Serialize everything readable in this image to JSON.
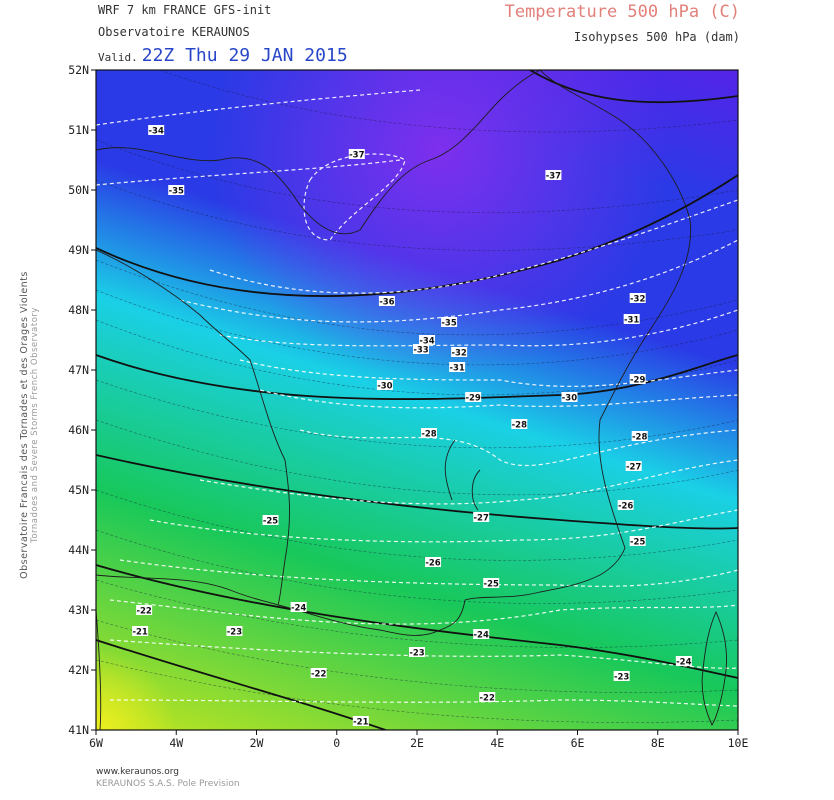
{
  "header": {
    "model": "WRF 7 km FRANCE  GFS-init",
    "organization": "Observatoire KERAUNOS",
    "valid_label": "Valid.",
    "valid_time": "22Z Thu 29 JAN 2015",
    "temperature_title": "Temperature 500 hPa (C)",
    "isohypses_title": "Isohypses 500 hPa (dam)"
  },
  "side_text": {
    "french": "Observatoire Francais des Tornades et des Orages Violents",
    "english": "Tornadoes and Severe Storms French Observatory"
  },
  "footer": {
    "website": "www.keraunos.org",
    "company": "KERAUNOS S.A.S. Pole Prevision"
  },
  "map": {
    "lon_range": [
      -6,
      10
    ],
    "lat_range": [
      41,
      52
    ],
    "lon_ticks": [
      {
        "value": -6,
        "label": "6W"
      },
      {
        "value": -4,
        "label": "4W"
      },
      {
        "value": -2,
        "label": "2W"
      },
      {
        "value": 0,
        "label": "0"
      },
      {
        "value": 2,
        "label": "2E"
      },
      {
        "value": 4,
        "label": "4E"
      },
      {
        "value": 6,
        "label": "6E"
      },
      {
        "value": 8,
        "label": "8E"
      },
      {
        "value": 10,
        "label": "10E"
      }
    ],
    "lat_ticks": [
      {
        "value": 52,
        "label": "52N"
      },
      {
        "value": 51,
        "label": "51N"
      },
      {
        "value": 50,
        "label": "50N"
      },
      {
        "value": 49,
        "label": "49N"
      },
      {
        "value": 48,
        "label": "48N"
      },
      {
        "value": 47,
        "label": "47N"
      },
      {
        "value": 46,
        "label": "46N"
      },
      {
        "value": 45,
        "label": "45N"
      },
      {
        "value": 44,
        "label": "44N"
      },
      {
        "value": 43,
        "label": "43N"
      },
      {
        "value": 42,
        "label": "42N"
      },
      {
        "value": 41,
        "label": "41N"
      }
    ],
    "colors": {
      "cold": "#6a18ea",
      "blue": "#2a3ae6",
      "cyan": "#1ad0e6",
      "green": "#18c85a",
      "warm": "#d8e818"
    },
    "isotherm_labels": [
      {
        "text": "-34",
        "lon": -4.5,
        "lat": 51.0
      },
      {
        "text": "-35",
        "lon": -4.0,
        "lat": 50.0
      },
      {
        "text": "-37",
        "lon": 0.5,
        "lat": 50.6
      },
      {
        "text": "-37",
        "lon": 5.4,
        "lat": 50.25
      },
      {
        "text": "-36",
        "lon": 1.25,
        "lat": 48.15
      },
      {
        "text": "-35",
        "lon": 2.8,
        "lat": 47.8
      },
      {
        "text": "-34",
        "lon": 2.25,
        "lat": 47.5
      },
      {
        "text": "-33",
        "lon": 2.1,
        "lat": 47.35
      },
      {
        "text": "-32",
        "lon": 3.05,
        "lat": 47.3
      },
      {
        "text": "-31",
        "lon": 3.0,
        "lat": 47.05
      },
      {
        "text": "-30",
        "lon": 1.2,
        "lat": 46.75
      },
      {
        "text": "-29",
        "lon": 3.4,
        "lat": 46.55
      },
      {
        "text": "-30",
        "lon": 5.8,
        "lat": 46.55
      },
      {
        "text": "-32",
        "lon": 7.5,
        "lat": 48.2
      },
      {
        "text": "-31",
        "lon": 7.35,
        "lat": 47.85
      },
      {
        "text": "-29",
        "lon": 7.5,
        "lat": 46.85
      },
      {
        "text": "-28",
        "lon": 2.3,
        "lat": 45.95
      },
      {
        "text": "-28",
        "lon": 4.55,
        "lat": 46.1
      },
      {
        "text": "-28",
        "lon": 7.55,
        "lat": 45.9
      },
      {
        "text": "-27",
        "lon": 7.4,
        "lat": 45.4
      },
      {
        "text": "-27",
        "lon": 3.6,
        "lat": 44.55
      },
      {
        "text": "-26",
        "lon": 7.2,
        "lat": 44.75
      },
      {
        "text": "-25",
        "lon": -1.65,
        "lat": 44.5
      },
      {
        "text": "-25",
        "lon": 7.5,
        "lat": 44.15
      },
      {
        "text": "-26",
        "lon": 2.4,
        "lat": 43.8
      },
      {
        "text": "-25",
        "lon": 3.85,
        "lat": 43.45
      },
      {
        "text": "-24",
        "lon": -0.95,
        "lat": 43.05
      },
      {
        "text": "-24",
        "lon": 3.6,
        "lat": 42.6
      },
      {
        "text": "-22",
        "lon": -4.8,
        "lat": 43.0
      },
      {
        "text": "-21",
        "lon": -4.9,
        "lat": 42.65
      },
      {
        "text": "-23",
        "lon": -2.55,
        "lat": 42.65
      },
      {
        "text": "-23",
        "lon": 2.0,
        "lat": 42.3
      },
      {
        "text": "-22",
        "lon": -0.45,
        "lat": 41.95
      },
      {
        "text": "-22",
        "lon": 3.75,
        "lat": 41.55
      },
      {
        "text": "-23",
        "lon": 7.1,
        "lat": 41.9
      },
      {
        "text": "-24",
        "lon": 8.65,
        "lat": 42.15
      },
      {
        "text": "-21",
        "lon": 0.6,
        "lat": 41.15
      }
    ]
  }
}
